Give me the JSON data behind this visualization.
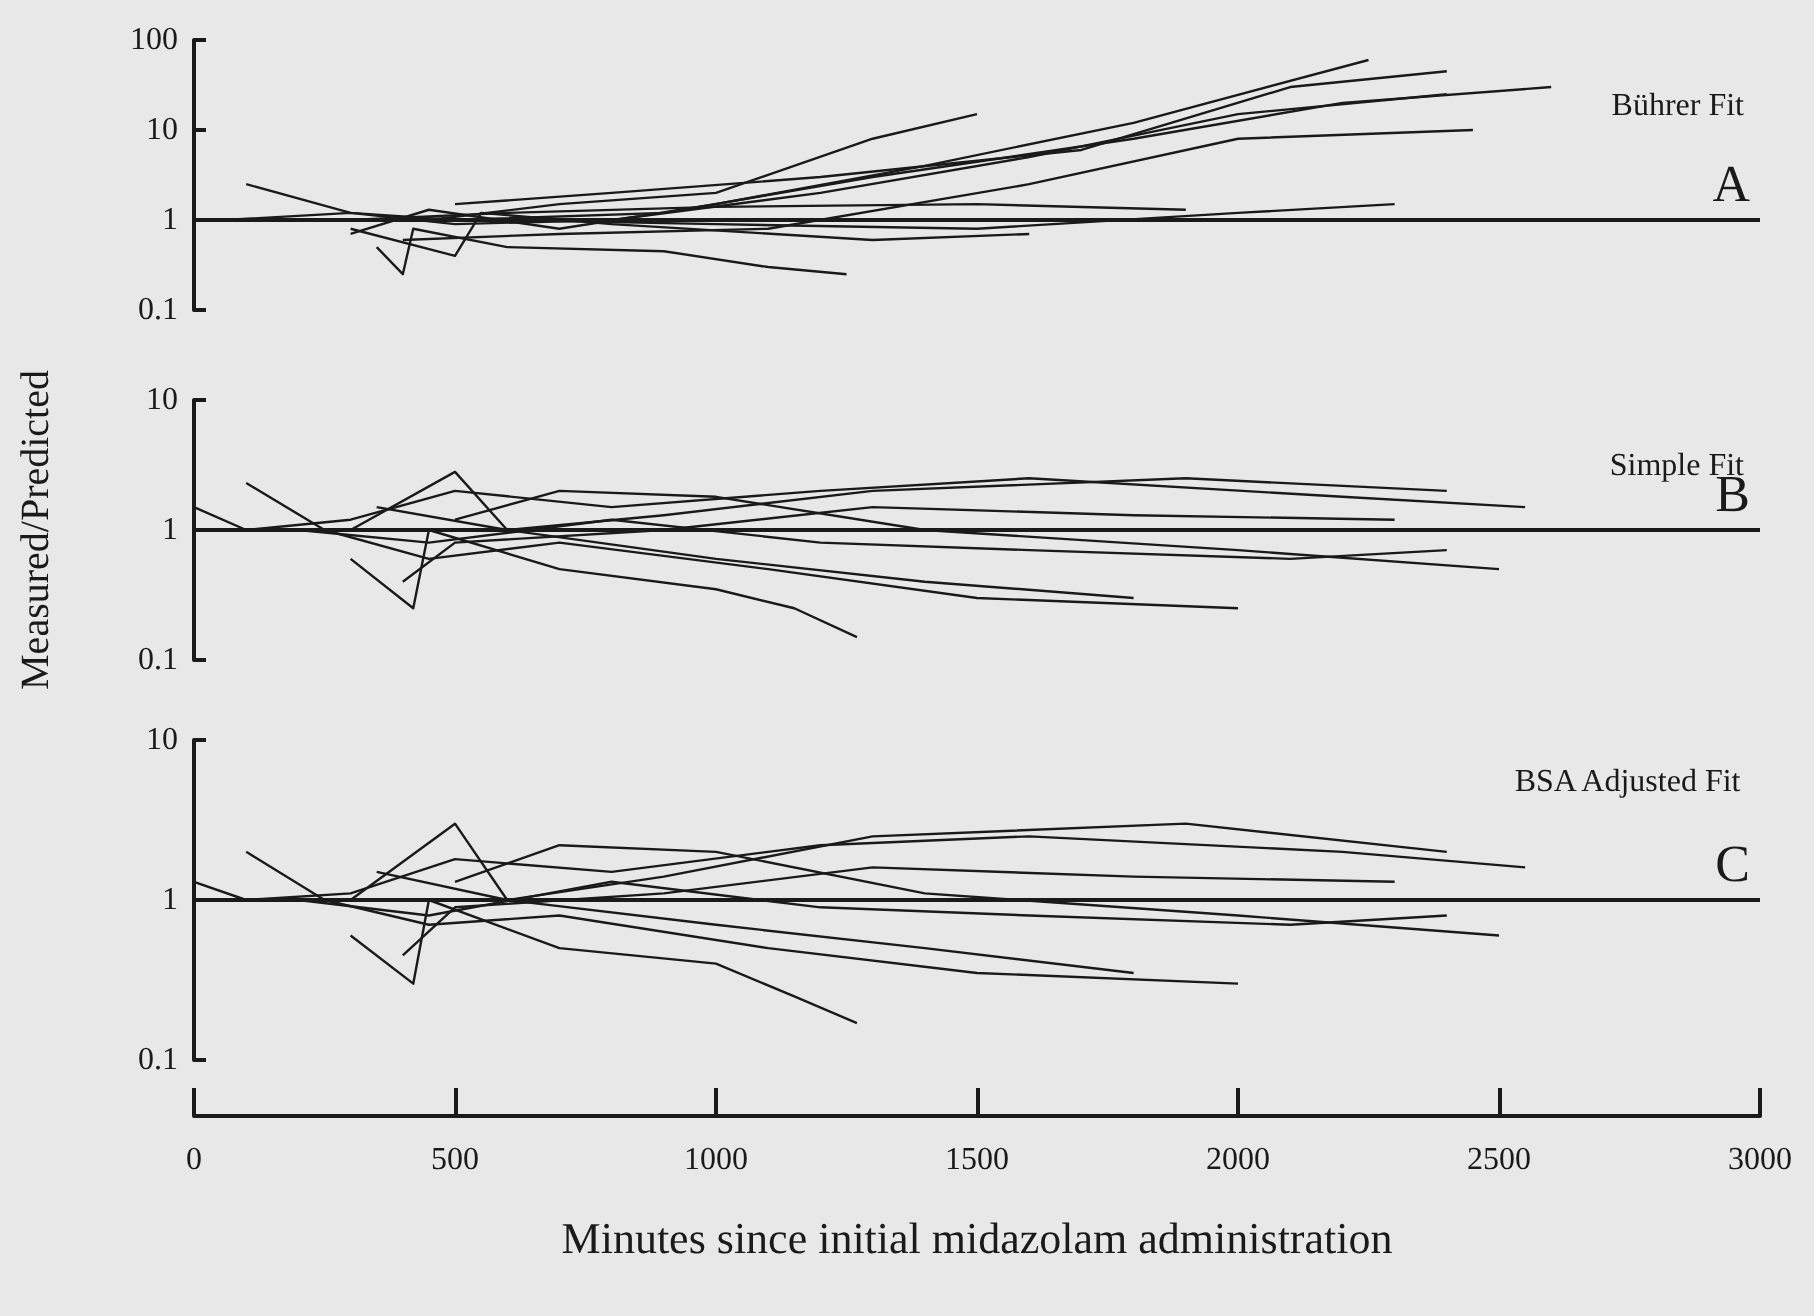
{
  "chart_data": [
    {
      "type": "line",
      "title": "Bührer Fit",
      "xlim": [
        0,
        3000
      ],
      "xticks": [
        0,
        500,
        1000,
        1500,
        2000,
        2500,
        3000
      ],
      "ylim": [
        0.1,
        100
      ],
      "yticks": [
        0.1,
        1,
        10,
        100
      ],
      "log": "y",
      "marker": "none",
      "line_style": "solid",
      "tick_labels": "y",
      "ref_lines": [
        {
          "axis": "y",
          "value": 1,
          "label": "A"
        }
      ],
      "series": [
        {
          "color": "#1a1a1a",
          "x": [
            60,
            300,
            500,
            800,
            1200,
            1600,
            2000,
            2400
          ],
          "values": [
            1,
            1.2,
            0.9,
            1,
            2,
            5,
            15,
            25
          ]
        },
        {
          "color": "#1a1a1a",
          "x": [
            300,
            450,
            700,
            1000,
            1400,
            1800,
            2250
          ],
          "values": [
            0.7,
            1.3,
            0.8,
            1.5,
            4,
            12,
            60
          ]
        },
        {
          "color": "#1a1a1a",
          "x": [
            100,
            300,
            500,
            900,
            1300,
            1800,
            2200,
            2600
          ],
          "values": [
            2.5,
            1.2,
            1,
            1.2,
            3,
            8,
            20,
            30
          ]
        },
        {
          "color": "#1a1a1a",
          "x": [
            350,
            400,
            420,
            600,
            900,
            1100,
            1250
          ],
          "values": [
            0.5,
            0.25,
            0.8,
            0.5,
            0.45,
            0.3,
            0.25
          ]
        },
        {
          "color": "#1a1a1a",
          "x": [
            300,
            600,
            1000,
            1500,
            1900
          ],
          "values": [
            1,
            1.2,
            1.4,
            1.5,
            1.3
          ]
        },
        {
          "color": "#1a1a1a",
          "x": [
            400,
            700,
            1100,
            1600,
            2000,
            2450
          ],
          "values": [
            0.6,
            0.7,
            0.8,
            2.5,
            8,
            10
          ]
        },
        {
          "color": "#1a1a1a",
          "x": [
            500,
            800,
            1200,
            1700,
            2100,
            2400
          ],
          "values": [
            1.5,
            2,
            3,
            6,
            30,
            45
          ]
        },
        {
          "color": "#1a1a1a",
          "x": [
            300,
            500,
            550,
            800,
            1300,
            1600
          ],
          "values": [
            0.8,
            0.4,
            1.2,
            0.9,
            0.6,
            0.7
          ]
        },
        {
          "color": "#1a1a1a",
          "x": [
            450,
            700,
            1000,
            1300,
            1500
          ],
          "values": [
            1,
            1.5,
            2,
            8,
            15
          ]
        },
        {
          "color": "#1a1a1a",
          "x": [
            600,
            1000,
            1500,
            2000,
            2300
          ],
          "values": [
            1,
            0.9,
            0.8,
            1.2,
            1.5
          ]
        }
      ]
    },
    {
      "type": "line",
      "title": "Simple Fit",
      "ylabel": "Measured/Predicted",
      "xlim": [
        0,
        3000
      ],
      "xticks": [
        0,
        500,
        1000,
        1500,
        2000,
        2500,
        3000
      ],
      "ylim": [
        0.1,
        10
      ],
      "yticks": [
        0.1,
        1,
        10
      ],
      "log": "y",
      "marker": "none",
      "line_style": "solid",
      "tick_labels": "y",
      "ref_lines": [
        {
          "axis": "y",
          "value": 1,
          "label": "B"
        }
      ],
      "series": [
        {
          "color": "#1a1a1a",
          "x": [
            0,
            100,
            300,
            500,
            800,
            1200,
            1600,
            2200,
            2550
          ],
          "values": [
            1.5,
            1,
            1.2,
            2,
            1.5,
            2,
            2.5,
            1.8,
            1.5
          ]
        },
        {
          "color": "#1a1a1a",
          "x": [
            100,
            250,
            450,
            700,
            1100,
            1500,
            2000
          ],
          "values": [
            2.3,
            1,
            0.6,
            0.8,
            0.5,
            0.3,
            0.25
          ]
        },
        {
          "color": "#1a1a1a",
          "x": [
            300,
            420,
            450,
            700,
            1000,
            1150,
            1270
          ],
          "values": [
            0.6,
            0.25,
            1,
            0.5,
            0.35,
            0.25,
            0.15
          ]
        },
        {
          "color": "#1a1a1a",
          "x": [
            300,
            500,
            600,
            900,
            1300,
            1900,
            2400
          ],
          "values": [
            1,
            2.8,
            1,
            1.3,
            2,
            2.5,
            2
          ]
        },
        {
          "color": "#1a1a1a",
          "x": [
            200,
            450,
            800,
            1200,
            1600,
            2100,
            2400
          ],
          "values": [
            1,
            0.8,
            1.2,
            0.8,
            0.7,
            0.6,
            0.7
          ]
        },
        {
          "color": "#1a1a1a",
          "x": [
            350,
            600,
            1000,
            1400,
            1800
          ],
          "values": [
            1.5,
            1,
            0.6,
            0.4,
            0.3
          ]
        },
        {
          "color": "#1a1a1a",
          "x": [
            400,
            500,
            900,
            1300,
            1800,
            2300
          ],
          "values": [
            0.4,
            0.8,
            1,
            1.5,
            1.3,
            1.2
          ]
        },
        {
          "color": "#1a1a1a",
          "x": [
            500,
            700,
            1000,
            1400,
            2000,
            2500
          ],
          "values": [
            1.2,
            2,
            1.8,
            1,
            0.7,
            0.5
          ]
        }
      ]
    },
    {
      "type": "line",
      "title": "BSA Adjusted Fit",
      "xlabel": "Minutes since initial midazolam administration",
      "xlim": [
        0,
        3000
      ],
      "xticks": [
        0,
        500,
        1000,
        1500,
        2000,
        2500,
        3000
      ],
      "ylim": [
        0.1,
        10
      ],
      "yticks": [
        0.1,
        1,
        10
      ],
      "log": "y",
      "marker": "none",
      "line_style": "solid",
      "ref_lines": [
        {
          "axis": "y",
          "value": 1,
          "label": "C"
        }
      ],
      "series": [
        {
          "color": "#1a1a1a",
          "x": [
            0,
            100,
            300,
            500,
            800,
            1200,
            1600,
            2200,
            2550
          ],
          "values": [
            1.3,
            1,
            1.1,
            1.8,
            1.5,
            2.2,
            2.5,
            2,
            1.6
          ]
        },
        {
          "color": "#1a1a1a",
          "x": [
            100,
            250,
            450,
            700,
            1100,
            1500,
            2000
          ],
          "values": [
            2,
            1,
            0.7,
            0.8,
            0.5,
            0.35,
            0.3
          ]
        },
        {
          "color": "#1a1a1a",
          "x": [
            300,
            420,
            450,
            700,
            1000,
            1150,
            1270
          ],
          "values": [
            0.6,
            0.3,
            1,
            0.5,
            0.4,
            0.25,
            0.17
          ]
        },
        {
          "color": "#1a1a1a",
          "x": [
            300,
            500,
            600,
            900,
            1300,
            1900,
            2400
          ],
          "values": [
            1,
            3,
            1,
            1.4,
            2.5,
            3,
            2
          ]
        },
        {
          "color": "#1a1a1a",
          "x": [
            200,
            450,
            800,
            1200,
            1600,
            2100,
            2400
          ],
          "values": [
            1,
            0.8,
            1.3,
            0.9,
            0.8,
            0.7,
            0.8
          ]
        },
        {
          "color": "#1a1a1a",
          "x": [
            350,
            600,
            1000,
            1400,
            1800
          ],
          "values": [
            1.5,
            1,
            0.7,
            0.5,
            0.35
          ]
        },
        {
          "color": "#1a1a1a",
          "x": [
            400,
            500,
            900,
            1300,
            1800,
            2300
          ],
          "values": [
            0.45,
            0.9,
            1.1,
            1.6,
            1.4,
            1.3
          ]
        },
        {
          "color": "#1a1a1a",
          "x": [
            500,
            700,
            1000,
            1400,
            2000,
            2500
          ],
          "values": [
            1.3,
            2.2,
            2,
            1.1,
            0.8,
            0.6
          ]
        }
      ]
    }
  ]
}
